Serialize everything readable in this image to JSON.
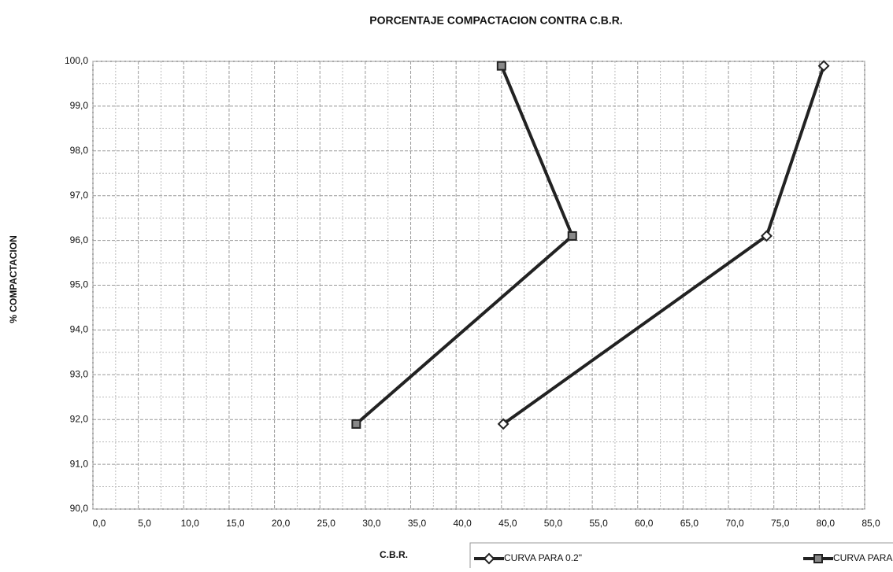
{
  "chart_data": {
    "type": "line",
    "title": "PORCENTAJE COMPACTACION CONTRA C.B.R.",
    "xlabel": "C.B.R.",
    "ylabel": "% COMPACTACION",
    "xlim": [
      0,
      85
    ],
    "xticks": [
      {
        "value": 0,
        "label": "0,0"
      },
      {
        "value": 5,
        "label": "5,0"
      },
      {
        "value": 10,
        "label": "10,0"
      },
      {
        "value": 15,
        "label": "15,0"
      },
      {
        "value": 20,
        "label": "20,0"
      },
      {
        "value": 25,
        "label": "25,0"
      },
      {
        "value": 30,
        "label": "30,0"
      },
      {
        "value": 35,
        "label": "35,0"
      },
      {
        "value": 40,
        "label": "40,0"
      },
      {
        "value": 45,
        "label": "45,0"
      },
      {
        "value": 50,
        "label": "50,0"
      },
      {
        "value": 55,
        "label": "55,0"
      },
      {
        "value": 60,
        "label": "60,0"
      },
      {
        "value": 65,
        "label": "65,0"
      },
      {
        "value": 70,
        "label": "70,0"
      },
      {
        "value": 75,
        "label": "75,0"
      },
      {
        "value": 80,
        "label": "80,0"
      },
      {
        "value": 85,
        "label": "85,0"
      }
    ],
    "ylim": [
      90,
      100
    ],
    "yticks": [
      {
        "value": 90,
        "label": "90,0"
      },
      {
        "value": 91,
        "label": "91,0"
      },
      {
        "value": 92,
        "label": "92,0"
      },
      {
        "value": 93,
        "label": "93,0"
      },
      {
        "value": 94,
        "label": "94,0"
      },
      {
        "value": 95,
        "label": "95,0"
      },
      {
        "value": 96,
        "label": "96,0"
      },
      {
        "value": 97,
        "label": "97,0"
      },
      {
        "value": 98,
        "label": "98,0"
      },
      {
        "value": 99,
        "label": "99,0"
      },
      {
        "value": 100,
        "label": "100,0"
      }
    ],
    "grid": true,
    "series": [
      {
        "name": "CURVA PARA 0.2\"",
        "color": "#222222",
        "marker": "diamond",
        "x": [
          45.2,
          74.2,
          80.5
        ],
        "values": [
          91.9,
          96.1,
          99.9
        ]
      },
      {
        "name": "CURVA PARA",
        "color": "#222222",
        "marker": "square",
        "x": [
          29.0,
          52.8,
          45.0
        ],
        "values": [
          91.9,
          96.1,
          99.9
        ]
      }
    ]
  }
}
